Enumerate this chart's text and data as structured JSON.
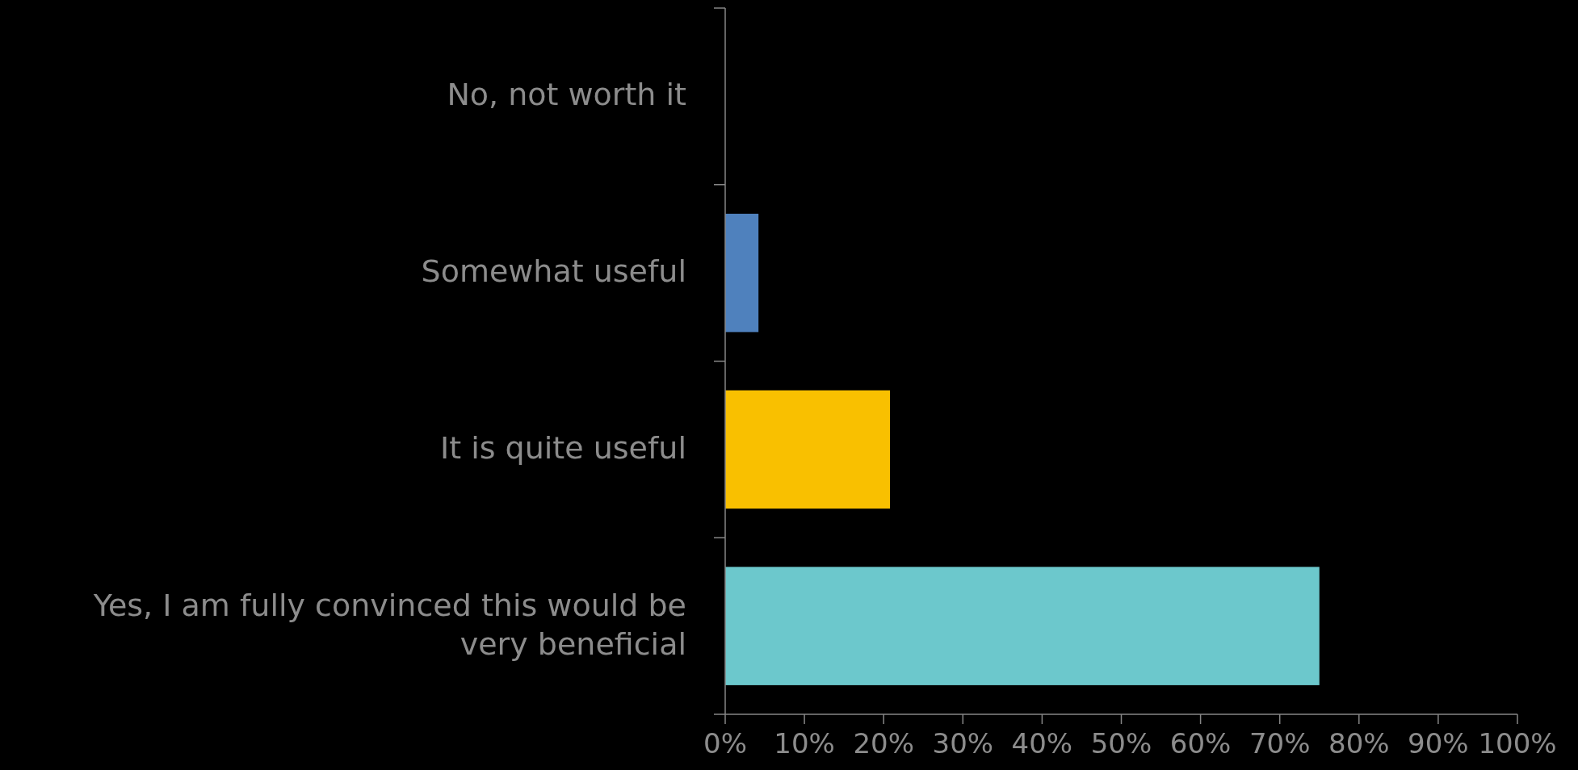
{
  "chart_data": {
    "type": "bar",
    "orientation": "horizontal",
    "categories": [
      "No, not worth it",
      "Somewhat useful",
      "It is quite useful",
      "Yes, I am fully convinced this would be very beneficial"
    ],
    "values": [
      0,
      4.2,
      20.8,
      75
    ],
    "colors": [
      "#4f81bd",
      "#4f81bd",
      "#f9c000",
      "#6cc8cc"
    ],
    "xlim": [
      0,
      100
    ],
    "xticks": [
      {
        "value": 0,
        "label": "0%"
      },
      {
        "value": 10,
        "label": "10%"
      },
      {
        "value": 20,
        "label": "20%"
      },
      {
        "value": 30,
        "label": "30%"
      },
      {
        "value": 40,
        "label": "40%"
      },
      {
        "value": 50,
        "label": "50%"
      },
      {
        "value": 60,
        "label": "60%"
      },
      {
        "value": 70,
        "label": "70%"
      },
      {
        "value": 80,
        "label": "80%"
      },
      {
        "value": 90,
        "label": "90%"
      },
      {
        "value": 100,
        "label": "100%"
      }
    ],
    "grid": false
  }
}
